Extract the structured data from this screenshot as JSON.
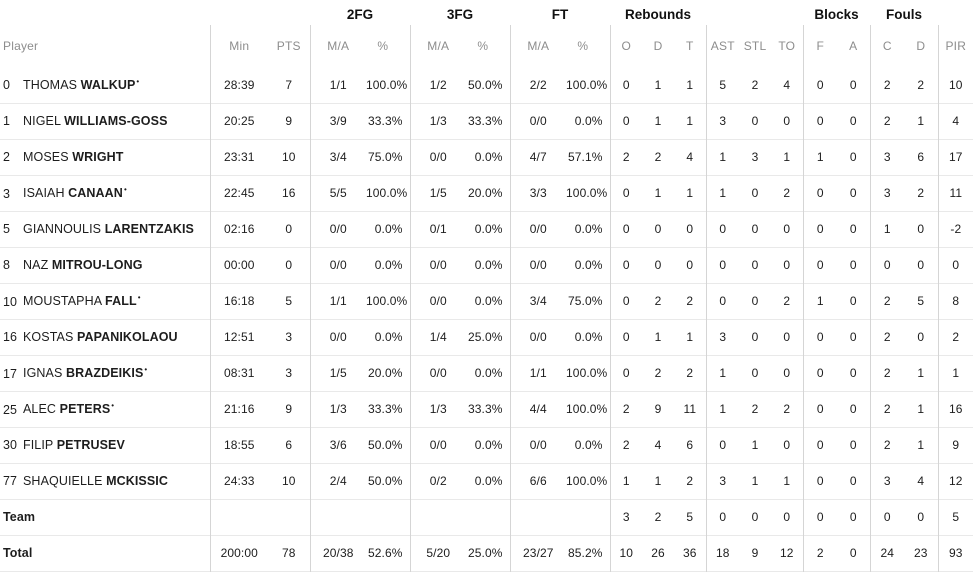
{
  "table": {
    "group_headers": [
      {
        "label": "",
        "span": 3
      },
      {
        "label": "2FG",
        "span": 2
      },
      {
        "label": "3FG",
        "span": 2
      },
      {
        "label": "FT",
        "span": 2
      },
      {
        "label": "Rebounds",
        "span": 3
      },
      {
        "label": "",
        "span": 3
      },
      {
        "label": "Blocks",
        "span": 2
      },
      {
        "label": "Fouls",
        "span": 2
      },
      {
        "label": "",
        "span": 1
      }
    ],
    "columns": [
      "Player",
      "Min",
      "PTS",
      "M/A",
      "%",
      "M/A",
      "%",
      "M/A",
      "%",
      "O",
      "D",
      "T",
      "AST",
      "STL",
      "TO",
      "F",
      "A",
      "C",
      "D",
      "PIR"
    ],
    "column_keys": [
      "player",
      "min",
      "pts",
      "2fg-ma",
      "2fg-pct",
      "3fg-ma",
      "3fg-pct",
      "ft-ma",
      "ft-pct",
      "reb-o",
      "reb-d",
      "reb-t",
      "ast",
      "stl",
      "to",
      "block-f",
      "block-a",
      "foul-c",
      "foul-d",
      "pir"
    ],
    "starter_marker": "•",
    "players": [
      {
        "number": "0",
        "first": "THOMAS",
        "last": "WALKUP",
        "starter": true,
        "stats": [
          "28:39",
          "7",
          "1/1",
          "100.0%",
          "1/2",
          "50.0%",
          "2/2",
          "100.0%",
          "0",
          "1",
          "1",
          "5",
          "2",
          "4",
          "0",
          "0",
          "2",
          "2",
          "10"
        ]
      },
      {
        "number": "1",
        "first": "NIGEL",
        "last": "WILLIAMS-GOSS",
        "starter": false,
        "stats": [
          "20:25",
          "9",
          "3/9",
          "33.3%",
          "1/3",
          "33.3%",
          "0/0",
          "0.0%",
          "0",
          "1",
          "1",
          "3",
          "0",
          "0",
          "0",
          "0",
          "2",
          "1",
          "4"
        ]
      },
      {
        "number": "2",
        "first": "MOSES",
        "last": "WRIGHT",
        "starter": false,
        "stats": [
          "23:31",
          "10",
          "3/4",
          "75.0%",
          "0/0",
          "0.0%",
          "4/7",
          "57.1%",
          "2",
          "2",
          "4",
          "1",
          "3",
          "1",
          "1",
          "0",
          "3",
          "6",
          "17"
        ]
      },
      {
        "number": "3",
        "first": "ISAIAH",
        "last": "CANAAN",
        "starter": true,
        "stats": [
          "22:45",
          "16",
          "5/5",
          "100.0%",
          "1/5",
          "20.0%",
          "3/3",
          "100.0%",
          "0",
          "1",
          "1",
          "1",
          "0",
          "2",
          "0",
          "0",
          "3",
          "2",
          "11"
        ]
      },
      {
        "number": "5",
        "first": "GIANNOULIS",
        "last": "LARENTZAKIS",
        "starter": false,
        "stats": [
          "02:16",
          "0",
          "0/0",
          "0.0%",
          "0/1",
          "0.0%",
          "0/0",
          "0.0%",
          "0",
          "0",
          "0",
          "0",
          "0",
          "0",
          "0",
          "0",
          "1",
          "0",
          "-2"
        ]
      },
      {
        "number": "8",
        "first": "NAZ",
        "last": "MITROU-LONG",
        "starter": false,
        "stats": [
          "00:00",
          "0",
          "0/0",
          "0.0%",
          "0/0",
          "0.0%",
          "0/0",
          "0.0%",
          "0",
          "0",
          "0",
          "0",
          "0",
          "0",
          "0",
          "0",
          "0",
          "0",
          "0"
        ]
      },
      {
        "number": "10",
        "first": "MOUSTAPHA",
        "last": "FALL",
        "starter": true,
        "stats": [
          "16:18",
          "5",
          "1/1",
          "100.0%",
          "0/0",
          "0.0%",
          "3/4",
          "75.0%",
          "0",
          "2",
          "2",
          "0",
          "0",
          "2",
          "1",
          "0",
          "2",
          "5",
          "8"
        ]
      },
      {
        "number": "16",
        "first": "KOSTAS",
        "last": "PAPANIKOLAOU",
        "starter": false,
        "stats": [
          "12:51",
          "3",
          "0/0",
          "0.0%",
          "1/4",
          "25.0%",
          "0/0",
          "0.0%",
          "0",
          "1",
          "1",
          "3",
          "0",
          "0",
          "0",
          "0",
          "2",
          "0",
          "2"
        ]
      },
      {
        "number": "17",
        "first": "IGNAS",
        "last": "BRAZDEIKIS",
        "starter": true,
        "stats": [
          "08:31",
          "3",
          "1/5",
          "20.0%",
          "0/0",
          "0.0%",
          "1/1",
          "100.0%",
          "0",
          "2",
          "2",
          "1",
          "0",
          "0",
          "0",
          "0",
          "2",
          "1",
          "1"
        ]
      },
      {
        "number": "25",
        "first": "ALEC",
        "last": "PETERS",
        "starter": true,
        "stats": [
          "21:16",
          "9",
          "1/3",
          "33.3%",
          "1/3",
          "33.3%",
          "4/4",
          "100.0%",
          "2",
          "9",
          "11",
          "1",
          "2",
          "2",
          "0",
          "0",
          "2",
          "1",
          "16"
        ]
      },
      {
        "number": "30",
        "first": "FILIP",
        "last": "PETRUSEV",
        "starter": false,
        "stats": [
          "18:55",
          "6",
          "3/6",
          "50.0%",
          "0/0",
          "0.0%",
          "0/0",
          "0.0%",
          "2",
          "4",
          "6",
          "0",
          "1",
          "0",
          "0",
          "0",
          "2",
          "1",
          "9"
        ]
      },
      {
        "number": "77",
        "first": "SHAQUIELLE",
        "last": "MCKISSIC",
        "starter": false,
        "stats": [
          "24:33",
          "10",
          "2/4",
          "50.0%",
          "0/2",
          "0.0%",
          "6/6",
          "100.0%",
          "1",
          "1",
          "2",
          "3",
          "1",
          "1",
          "0",
          "0",
          "3",
          "4",
          "12"
        ]
      }
    ],
    "team_row": {
      "label": "Team",
      "stats": [
        "",
        "",
        "",
        "",
        "",
        "",
        "",
        "",
        "3",
        "2",
        "5",
        "0",
        "0",
        "0",
        "0",
        "0",
        "0",
        "0",
        "5"
      ]
    },
    "total_row": {
      "label": "Total",
      "stats": [
        "200:00",
        "78",
        "20/38",
        "52.6%",
        "5/20",
        "25.0%",
        "23/27",
        "85.2%",
        "10",
        "26",
        "36",
        "18",
        "9",
        "12",
        "2",
        "0",
        "24",
        "23",
        "93"
      ]
    },
    "colors": {
      "text": "#1d1d1d",
      "header_text": "#8d8d8d",
      "group_header_text": "#111111",
      "vertical_divider": "#d5d5d5",
      "row_divider": "#e9e9e9",
      "background": "#ffffff"
    }
  }
}
